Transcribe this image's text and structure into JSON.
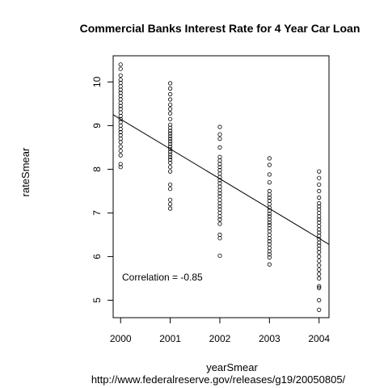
{
  "chart_data": {
    "type": "scatter",
    "title": "Commercial Banks Interest Rate for 4 Year Car Loan",
    "xlabel": "yearSmear",
    "ylabel": "rateSmear",
    "source": "http://www.federalreserve.gov/releases/g19/20050805/",
    "annotation": "Correlation =  -0.85",
    "xlim": [
      1999.85,
      2004.2
    ],
    "ylim": [
      4.6,
      10.6
    ],
    "x_ticks": [
      2000,
      2001,
      2002,
      2003,
      2004
    ],
    "y_ticks": [
      5,
      6,
      7,
      8,
      9,
      10
    ],
    "grid": false,
    "regression_line": {
      "x": [
        1999.85,
        2004.2
      ],
      "y": [
        9.25,
        6.28
      ]
    },
    "series": [
      {
        "points": [
          [
            2000,
            10.4
          ],
          [
            2000,
            10.3
          ],
          [
            2000,
            10.15
          ],
          [
            2000,
            10.05
          ],
          [
            2000,
            9.98
          ],
          [
            2000,
            9.9
          ],
          [
            2000,
            9.82
          ],
          [
            2000,
            9.75
          ],
          [
            2000,
            9.68
          ],
          [
            2000,
            9.6
          ],
          [
            2000,
            9.52
          ],
          [
            2000,
            9.45
          ],
          [
            2000,
            9.38
          ],
          [
            2000,
            9.3
          ],
          [
            2000,
            9.22
          ],
          [
            2000,
            9.15
          ],
          [
            2000,
            9.08
          ],
          [
            2000,
            9.0
          ],
          [
            2000,
            8.92
          ],
          [
            2000,
            8.85
          ],
          [
            2000,
            8.78
          ],
          [
            2000,
            8.7
          ],
          [
            2000,
            8.62
          ],
          [
            2000,
            8.52
          ],
          [
            2000,
            8.42
          ],
          [
            2000,
            8.32
          ],
          [
            2000,
            8.12
          ],
          [
            2000,
            8.05
          ],
          [
            2001,
            9.97
          ],
          [
            2001,
            9.85
          ],
          [
            2001,
            9.72
          ],
          [
            2001,
            9.6
          ],
          [
            2001,
            9.48
          ],
          [
            2001,
            9.38
          ],
          [
            2001,
            9.28
          ],
          [
            2001,
            9.15
          ],
          [
            2001,
            9.02
          ],
          [
            2001,
            8.95
          ],
          [
            2001,
            8.88
          ],
          [
            2001,
            8.82
          ],
          [
            2001,
            8.76
          ],
          [
            2001,
            8.7
          ],
          [
            2001,
            8.64
          ],
          [
            2001,
            8.58
          ],
          [
            2001,
            8.52
          ],
          [
            2001,
            8.46
          ],
          [
            2001,
            8.4
          ],
          [
            2001,
            8.34
          ],
          [
            2001,
            8.28
          ],
          [
            2001,
            8.22
          ],
          [
            2001,
            8.15
          ],
          [
            2001,
            8.05
          ],
          [
            2001,
            7.95
          ],
          [
            2001,
            7.65
          ],
          [
            2001,
            7.55
          ],
          [
            2001,
            7.3
          ],
          [
            2001,
            7.2
          ],
          [
            2001,
            7.1
          ],
          [
            2002,
            8.97
          ],
          [
            2002,
            8.8
          ],
          [
            2002,
            8.7
          ],
          [
            2002,
            8.5
          ],
          [
            2002,
            8.28
          ],
          [
            2002,
            8.2
          ],
          [
            2002,
            8.12
          ],
          [
            2002,
            8.05
          ],
          [
            2002,
            7.98
          ],
          [
            2002,
            7.9
          ],
          [
            2002,
            7.82
          ],
          [
            2002,
            7.75
          ],
          [
            2002,
            7.68
          ],
          [
            2002,
            7.6
          ],
          [
            2002,
            7.52
          ],
          [
            2002,
            7.45
          ],
          [
            2002,
            7.38
          ],
          [
            2002,
            7.3
          ],
          [
            2002,
            7.22
          ],
          [
            2002,
            7.15
          ],
          [
            2002,
            7.08
          ],
          [
            2002,
            7.0
          ],
          [
            2002,
            6.92
          ],
          [
            2002,
            6.85
          ],
          [
            2002,
            6.75
          ],
          [
            2002,
            6.5
          ],
          [
            2002,
            6.42
          ],
          [
            2002,
            6.02
          ],
          [
            2003,
            8.25
          ],
          [
            2003,
            8.1
          ],
          [
            2003,
            7.88
          ],
          [
            2003,
            7.7
          ],
          [
            2003,
            7.5
          ],
          [
            2003,
            7.42
          ],
          [
            2003,
            7.35
          ],
          [
            2003,
            7.28
          ],
          [
            2003,
            7.2
          ],
          [
            2003,
            7.12
          ],
          [
            2003,
            7.05
          ],
          [
            2003,
            6.98
          ],
          [
            2003,
            6.92
          ],
          [
            2003,
            6.85
          ],
          [
            2003,
            6.78
          ],
          [
            2003,
            6.72
          ],
          [
            2003,
            6.65
          ],
          [
            2003,
            6.58
          ],
          [
            2003,
            6.5
          ],
          [
            2003,
            6.42
          ],
          [
            2003,
            6.35
          ],
          [
            2003,
            6.28
          ],
          [
            2003,
            6.2
          ],
          [
            2003,
            6.12
          ],
          [
            2003,
            6.05
          ],
          [
            2003,
            5.98
          ],
          [
            2003,
            5.82
          ],
          [
            2004,
            7.95
          ],
          [
            2004,
            7.8
          ],
          [
            2004,
            7.65
          ],
          [
            2004,
            7.5
          ],
          [
            2004,
            7.35
          ],
          [
            2004,
            7.22
          ],
          [
            2004,
            7.15
          ],
          [
            2004,
            7.08
          ],
          [
            2004,
            7.0
          ],
          [
            2004,
            6.92
          ],
          [
            2004,
            6.85
          ],
          [
            2004,
            6.78
          ],
          [
            2004,
            6.7
          ],
          [
            2004,
            6.62
          ],
          [
            2004,
            6.55
          ],
          [
            2004,
            6.48
          ],
          [
            2004,
            6.4
          ],
          [
            2004,
            6.32
          ],
          [
            2004,
            6.25
          ],
          [
            2004,
            6.18
          ],
          [
            2004,
            6.1
          ],
          [
            2004,
            6.0
          ],
          [
            2004,
            5.9
          ],
          [
            2004,
            5.8
          ],
          [
            2004,
            5.7
          ],
          [
            2004,
            5.6
          ],
          [
            2004,
            5.5
          ],
          [
            2004,
            5.32
          ],
          [
            2004,
            5.28
          ],
          [
            2004,
            5.0
          ],
          [
            2004,
            4.78
          ]
        ]
      }
    ]
  }
}
